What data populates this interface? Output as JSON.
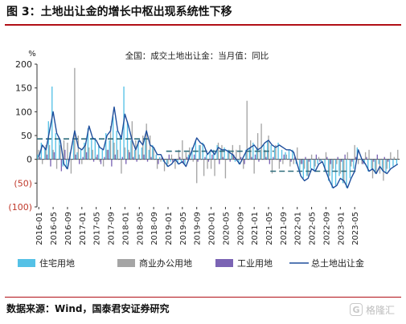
{
  "figure": {
    "title": "图 3：土地出让金的增长中枢出现系统性下移",
    "source": "数据来源：Wind，国泰君安证券研究",
    "watermark_text": "格隆汇"
  },
  "chart_data": {
    "type": "bar",
    "title": "全国：成交土地出让金：当月值：同比",
    "ylabel": "%",
    "ylim": [
      -100,
      200
    ],
    "yticks": [
      -100,
      -50,
      0,
      50,
      100,
      150,
      200
    ],
    "ytick_labels": [
      "(100)",
      "(50)",
      "0",
      "50",
      "100",
      "150",
      "200"
    ],
    "negative_label_color": "#c0392b",
    "grid": false,
    "legend_position": "bottom",
    "x_start": "2016-01",
    "x_tick_labels": [
      "2016-01",
      "2016-05",
      "2016-09",
      "2017-01",
      "2017-05",
      "2017-09",
      "2018-01",
      "2018-05",
      "2018-09",
      "2019-01",
      "2019-05",
      "2019-09",
      "2020-01",
      "2020-05",
      "2020-09",
      "2021-01",
      "2021-05",
      "2021-09",
      "2022-01",
      "2022-05",
      "2022-09",
      "2023-01",
      "2023-05"
    ],
    "series": [
      {
        "name": "住宅用地",
        "kind": "bar",
        "color": "#55c1e6",
        "values": [
          10,
          35,
          25,
          80,
          153,
          55,
          45,
          -15,
          -20,
          15,
          40,
          15,
          20,
          35,
          65,
          45,
          45,
          30,
          20,
          55,
          40,
          90,
          60,
          50,
          153,
          80,
          40,
          20,
          40,
          25,
          45,
          20,
          30,
          10,
          5,
          -5,
          -15,
          -5,
          0,
          -10,
          -5,
          -10,
          10,
          25,
          40,
          30,
          35,
          10,
          15,
          20,
          30,
          20,
          25,
          20,
          10,
          -5,
          -10,
          0,
          20,
          25,
          35,
          25,
          20,
          30,
          40,
          30,
          25,
          35,
          20,
          15,
          20,
          20,
          -10,
          -30,
          -40,
          -35,
          -20,
          -25,
          -10,
          -5,
          -25,
          -45,
          -60,
          -55,
          -35,
          -50,
          -60,
          -40,
          -20,
          25,
          0,
          -10,
          -25,
          -20,
          -30,
          -10,
          -25,
          -30,
          -20,
          -15,
          -10
        ]
      },
      {
        "name": "商业办公用地",
        "kind": "bar",
        "color": "#a5a5a5",
        "values": [
          20,
          -10,
          30,
          30,
          20,
          -20,
          30,
          40,
          35,
          -30,
          192,
          50,
          -10,
          30,
          25,
          20,
          5,
          -5,
          -15,
          20,
          70,
          35,
          20,
          -30,
          25,
          20,
          80,
          40,
          10,
          50,
          75,
          50,
          25,
          -20,
          -5,
          -25,
          -10,
          10,
          -20,
          20,
          40,
          15,
          25,
          -5,
          -50,
          30,
          -35,
          -20,
          -20,
          -35,
          35,
          30,
          -40,
          20,
          30,
          20,
          30,
          -20,
          123,
          40,
          -30,
          55,
          75,
          20,
          50,
          -30,
          30,
          -20,
          -10,
          10,
          -15,
          -10,
          25,
          -10,
          -20,
          -35,
          10,
          -15,
          5,
          0,
          15,
          -35,
          -20,
          -10,
          -30,
          -50,
          15,
          -15,
          30,
          -10,
          -10,
          15,
          20,
          -40,
          -30,
          -30,
          -45,
          -20,
          15,
          5,
          20
        ]
      },
      {
        "name": "工业用地",
        "kind": "bar",
        "color": "#7b64b4",
        "values": [
          5,
          0,
          10,
          -15,
          15,
          0,
          -25,
          20,
          -5,
          0,
          10,
          -10,
          5,
          15,
          0,
          -5,
          10,
          -10,
          5,
          20,
          -15,
          10,
          0,
          5,
          -10,
          15,
          5,
          -5,
          0,
          10,
          -5,
          5,
          0,
          -10,
          5,
          0,
          10,
          -5,
          0,
          5,
          -10,
          5,
          0,
          10,
          -5,
          0,
          5,
          -5,
          10,
          0,
          -10,
          5,
          0,
          -5,
          10,
          0,
          5,
          -10,
          0,
          5,
          10,
          -5,
          0,
          5,
          -10,
          5,
          0,
          -5,
          10,
          0,
          -5,
          5,
          0,
          -10,
          5,
          -5,
          0,
          10,
          -5,
          0,
          5,
          -10,
          0,
          5,
          -5,
          10,
          0,
          -5,
          5,
          0,
          -10,
          5,
          0,
          -5,
          10,
          0,
          5,
          -5,
          0
        ]
      },
      {
        "name": "总土地出让金",
        "kind": "line",
        "color": "#1f4e9c",
        "values": [
          5,
          30,
          20,
          60,
          100,
          55,
          40,
          -10,
          -20,
          20,
          60,
          25,
          20,
          30,
          70,
          45,
          40,
          25,
          20,
          50,
          60,
          110,
          60,
          45,
          95,
          70,
          40,
          20,
          40,
          30,
          60,
          30,
          25,
          10,
          10,
          -5,
          -15,
          -10,
          0,
          -10,
          -5,
          -15,
          5,
          25,
          45,
          35,
          30,
          10,
          20,
          10,
          25,
          20,
          20,
          15,
          10,
          0,
          -10,
          5,
          20,
          25,
          30,
          20,
          25,
          35,
          40,
          30,
          25,
          30,
          25,
          20,
          20,
          15,
          -10,
          -35,
          -45,
          -40,
          -20,
          -25,
          -10,
          -5,
          -25,
          -45,
          -60,
          -55,
          -40,
          -45,
          -60,
          -40,
          -25,
          20,
          0,
          -10,
          -25,
          -20,
          -30,
          -15,
          -25,
          -30,
          -20,
          -15,
          -10
        ]
      }
    ],
    "reference_lines": [
      {
        "style": "dashed",
        "color": "#2f6d7d",
        "y": 43,
        "x_from": "2016-01",
        "x_to": "2018-07"
      },
      {
        "style": "dashed",
        "color": "#2f6d7d",
        "y": 17,
        "x_from": "2019-01",
        "x_to": "2021-06"
      },
      {
        "style": "dashed",
        "color": "#2f6d7d",
        "y": -25,
        "x_from": "2021-06",
        "x_to": "2023-05"
      }
    ]
  }
}
